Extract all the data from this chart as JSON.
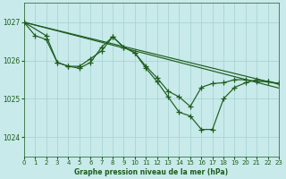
{
  "title": "Graphe pression niveau de la mer (hPa)",
  "bg_color": "#c8eaea",
  "grid_color": "#aad4d4",
  "line_color": "#1e5c1e",
  "xlim": [
    0,
    23
  ],
  "ylim": [
    1023.5,
    1027.5
  ],
  "yticks": [
    1024,
    1025,
    1026,
    1027
  ],
  "xticks": [
    0,
    1,
    2,
    3,
    4,
    5,
    6,
    7,
    8,
    9,
    10,
    11,
    12,
    13,
    14,
    15,
    16,
    17,
    18,
    19,
    20,
    21,
    22,
    23
  ],
  "smooth_line1": {
    "x": [
      0,
      23
    ],
    "y": [
      1027.0,
      1025.38
    ]
  },
  "smooth_line2": {
    "x": [
      0,
      23
    ],
    "y": [
      1027.0,
      1025.28
    ]
  },
  "wavy_line1": {
    "x": [
      0,
      2,
      3,
      4,
      5,
      6,
      7,
      8,
      9,
      10,
      11,
      12,
      13,
      14,
      15,
      16,
      17,
      18,
      19,
      20,
      21,
      22,
      23
    ],
    "y": [
      1027.0,
      1026.65,
      1025.95,
      1025.85,
      1025.85,
      1026.05,
      1026.25,
      1026.62,
      1026.35,
      1026.2,
      1025.85,
      1025.55,
      1025.2,
      1025.05,
      1024.8,
      1025.3,
      1025.4,
      1025.42,
      1025.5,
      1025.5,
      1025.45,
      1025.45,
      1025.4
    ]
  },
  "wavy_line2": {
    "x": [
      0,
      1,
      2,
      3,
      4,
      5,
      6,
      7,
      8,
      9,
      10,
      11,
      12,
      13,
      14,
      15,
      16,
      17,
      18,
      19,
      20,
      21,
      22,
      23
    ],
    "y": [
      1027.0,
      1026.65,
      1026.55,
      1025.95,
      1025.85,
      1025.8,
      1025.95,
      1026.35,
      1026.62,
      1026.35,
      1026.2,
      1025.8,
      1025.45,
      1025.05,
      1024.65,
      1024.55,
      1024.2,
      1024.2,
      1025.0,
      1025.3,
      1025.42,
      1025.5,
      1025.45,
      1025.4
    ]
  },
  "marker": "+",
  "markersize": 4,
  "linewidth": 0.85
}
